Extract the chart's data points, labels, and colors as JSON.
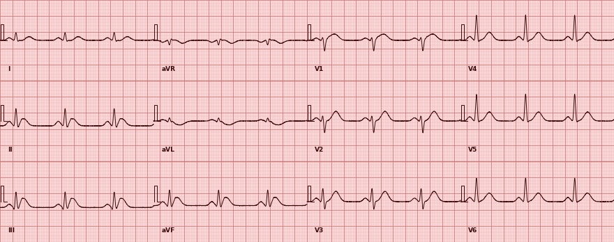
{
  "bg_color": "#f9d8d8",
  "grid_minor_color": "#e8aaaa",
  "grid_major_color": "#cc7777",
  "ecg_color": "#3a0808",
  "fig_width": 8.8,
  "fig_height": 3.48,
  "dpi": 100,
  "label_fontsize": 6.5,
  "line_width": 0.7,
  "cal_amp": 0.5,
  "leads_per_row": 4,
  "num_rows": 3,
  "lead_order": [
    [
      "I",
      "aVR",
      "V1",
      "V4"
    ],
    [
      "II",
      "aVL",
      "V2",
      "V5"
    ],
    [
      "III",
      "aVF",
      "V3",
      "V6"
    ]
  ],
  "lead_configs": {
    "I": {
      "p_amp": 0.08,
      "r_amp": 0.25,
      "q_depth": 0.02,
      "s_depth": 0.05,
      "t_amp": 0.12,
      "st_elev": -0.02,
      "invert_t": false,
      "baseline_shift": 0.0
    },
    "aVR": {
      "p_amp": -0.06,
      "r_amp": -0.15,
      "q_depth": -0.02,
      "s_depth": -0.06,
      "t_amp": -0.1,
      "st_elev": 0.02,
      "invert_t": false,
      "baseline_shift": 0.0
    },
    "V1": {
      "p_amp": 0.07,
      "r_amp": 0.12,
      "q_depth": 0.02,
      "s_depth": 0.35,
      "t_amp": 0.15,
      "st_elev": 0.1,
      "invert_t": false,
      "baseline_shift": 0.0
    },
    "V4": {
      "p_amp": 0.12,
      "r_amp": 0.8,
      "q_depth": 0.05,
      "s_depth": 0.1,
      "t_amp": 0.25,
      "st_elev": 0.0,
      "invert_t": false,
      "baseline_shift": 0.0
    },
    "II": {
      "p_amp": 0.14,
      "r_amp": 0.55,
      "q_depth": 0.05,
      "s_depth": 0.08,
      "t_amp": 0.0,
      "st_elev": 0.22,
      "invert_t": false,
      "baseline_shift": -0.15
    },
    "aVL": {
      "p_amp": 0.04,
      "r_amp": 0.1,
      "q_depth": 0.04,
      "s_depth": 0.03,
      "t_amp": -0.08,
      "st_elev": -0.08,
      "invert_t": false,
      "baseline_shift": 0.0
    },
    "V2": {
      "p_amp": 0.1,
      "r_amp": 0.2,
      "q_depth": 0.03,
      "s_depth": 0.4,
      "t_amp": 0.3,
      "st_elev": 0.0,
      "invert_t": false,
      "baseline_shift": 0.0
    },
    "V5": {
      "p_amp": 0.13,
      "r_amp": 0.85,
      "q_depth": 0.05,
      "s_depth": 0.08,
      "t_amp": 0.28,
      "st_elev": 0.0,
      "invert_t": false,
      "baseline_shift": 0.0
    },
    "III": {
      "p_amp": 0.1,
      "r_amp": 0.5,
      "q_depth": 0.12,
      "s_depth": 0.06,
      "t_amp": 0.0,
      "st_elev": 0.28,
      "invert_t": false,
      "baseline_shift": -0.18
    },
    "aVF": {
      "p_amp": 0.12,
      "r_amp": 0.5,
      "q_depth": 0.08,
      "s_depth": 0.07,
      "t_amp": 0.0,
      "st_elev": 0.25,
      "invert_t": false,
      "baseline_shift": -0.12
    },
    "V3": {
      "p_amp": 0.11,
      "r_amp": 0.45,
      "q_depth": 0.04,
      "s_depth": 0.3,
      "t_amp": 0.32,
      "st_elev": 0.0,
      "invert_t": false,
      "baseline_shift": 0.0
    },
    "V6": {
      "p_amp": 0.13,
      "r_amp": 0.75,
      "q_depth": 0.06,
      "s_depth": 0.06,
      "t_amp": 0.26,
      "st_elev": 0.02,
      "invert_t": false,
      "baseline_shift": 0.0
    }
  }
}
